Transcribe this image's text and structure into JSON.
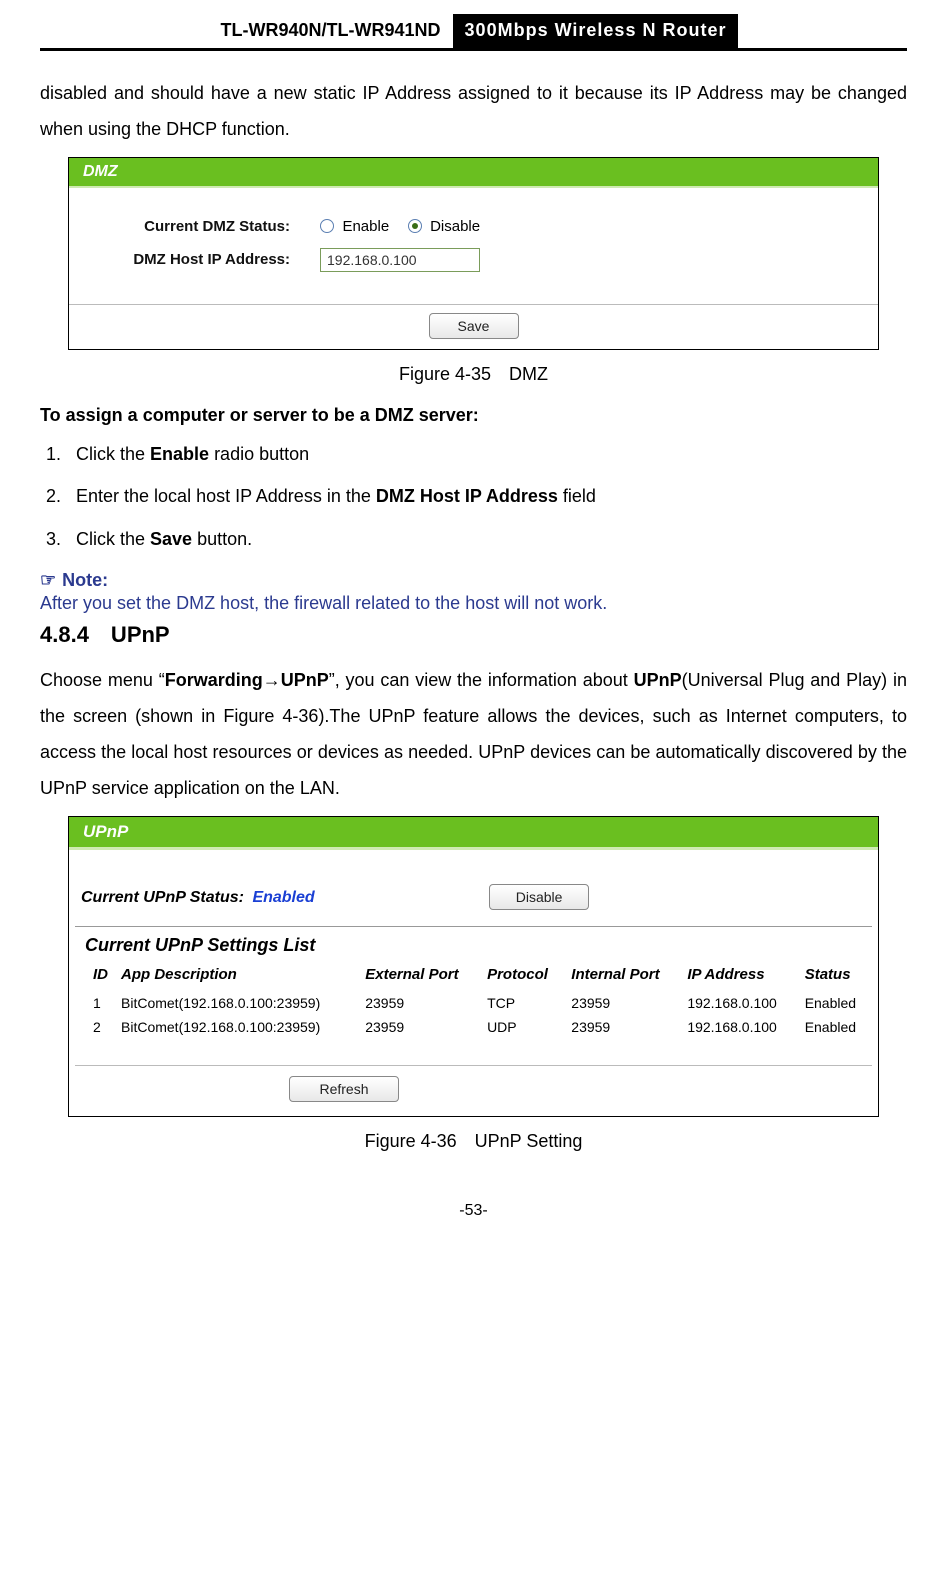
{
  "header": {
    "model": "TL-WR940N/TL-WR941ND",
    "product": "300Mbps Wireless N Router"
  },
  "intro_para": "disabled and should have a new static IP Address assigned to it because its IP Address may be changed when using the DHCP function.",
  "dmz_fig": {
    "panel_title": "DMZ",
    "status_label": "Current DMZ Status:",
    "enable_label": "Enable",
    "disable_label": "Disable",
    "ip_label": "DMZ Host IP Address:",
    "ip_value": "192.168.0.100",
    "save_btn": "Save",
    "caption": "Figure 4-35 DMZ",
    "colors": {
      "header_bg": "#6abf20",
      "header_fg": "#fdfdfd",
      "border": "#000000"
    }
  },
  "assign_heading": "To assign a computer or server to be a DMZ server:",
  "steps": {
    "s1_a": "Click the ",
    "s1_b": "Enable",
    "s1_c": " radio button",
    "s2_a": "Enter the local host IP Address in the ",
    "s2_b": "DMZ Host IP Address",
    "s2_c": " field",
    "s3_a": "Click the ",
    "s3_b": "Save",
    "s3_c": " button."
  },
  "note": {
    "label": "Note:",
    "hand": "☞",
    "text": "After you set the DMZ host, the firewall related to the host will not work."
  },
  "section": {
    "num": "4.8.4 UPnP"
  },
  "upnp_para_parts": {
    "a": "Choose menu “",
    "b": "Forwarding",
    "arrow": "→",
    "c": "UPnP",
    "d": "”, you can view the information about ",
    "e": "UPnP",
    "f": "(Universal Plug and Play) in the screen (shown in ",
    "g": "Figure 4-36",
    "h": ").The UPnP feature allows the devices, such as Internet computers, to access the local host resources or devices as needed. UPnP devices can be automatically discovered by the UPnP service application on the LAN."
  },
  "upnp_fig": {
    "panel_title": "UPnP",
    "status_label": "Current UPnP Status:",
    "status_value": "Enabled",
    "toggle_btn": "Disable",
    "list_title": "Current UPnP Settings List",
    "columns": [
      "ID",
      "App Description",
      "External Port",
      "Protocol",
      "Internal Port",
      "IP Address",
      "Status"
    ],
    "rows": [
      [
        "1",
        "BitComet(192.168.0.100:23959)",
        "23959",
        "TCP",
        "23959",
        "192.168.0.100",
        "Enabled"
      ],
      [
        "2",
        "BitComet(192.168.0.100:23959)",
        "23959",
        "UDP",
        "23959",
        "192.168.0.100",
        "Enabled"
      ]
    ],
    "refresh_btn": "Refresh",
    "caption": "Figure 4-36 UPnP Setting",
    "colors": {
      "header_bg": "#6abf20",
      "header_fg": "#fdfdfd",
      "link_blue": "#1a3fd4"
    }
  },
  "page_number": "-53-"
}
